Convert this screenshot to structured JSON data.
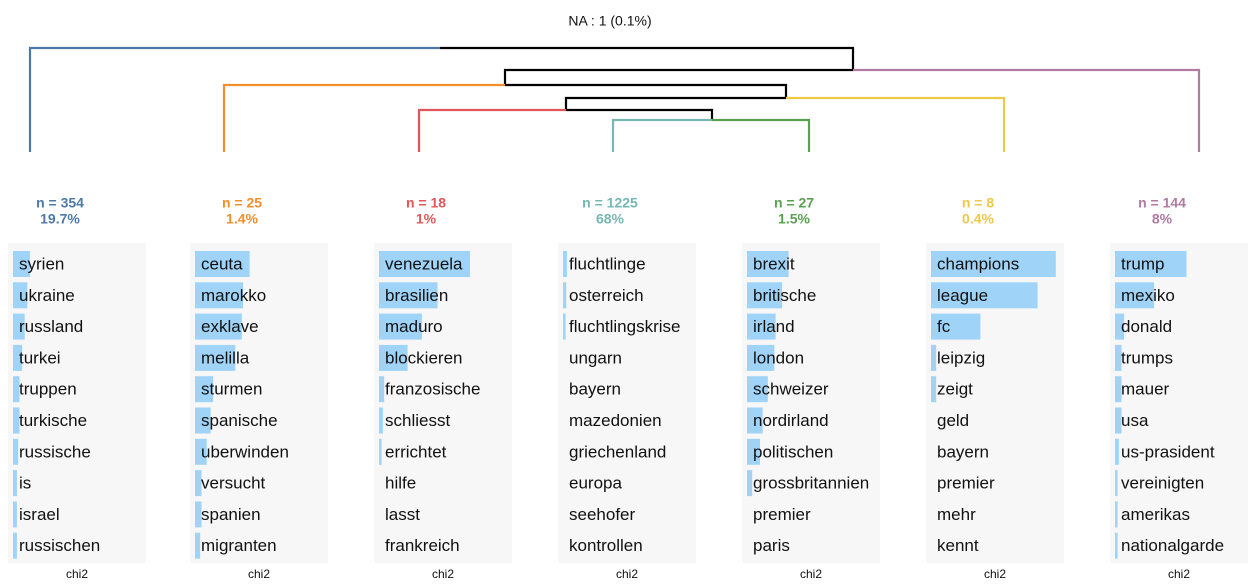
{
  "title": "NA : 1 (0.1%)",
  "clusters": [
    {
      "n": "n = 354",
      "pct": "19.7%",
      "color": "#4e79a7",
      "axis_label": "chi2",
      "xlim": [
        0,
        1
      ],
      "words": [
        "syrien",
        "ukraine",
        "russland",
        "turkei",
        "truppen",
        "turkische",
        "russische",
        "is",
        "israel",
        "russischen"
      ],
      "values": [
        0.13,
        0.11,
        0.09,
        0.07,
        0.05,
        0.05,
        0.04,
        0.03,
        0.03,
        0.03
      ]
    },
    {
      "n": "n = 25",
      "pct": "1.4%",
      "color": "#f28e2b",
      "axis_label": "chi2",
      "xlim": [
        0,
        1
      ],
      "words": [
        "ceuta",
        "marokko",
        "exklave",
        "melilla",
        "sturmen",
        "spanische",
        "uberwinden",
        "versucht",
        "spanien",
        "migranten"
      ],
      "values": [
        0.42,
        0.37,
        0.36,
        0.31,
        0.14,
        0.12,
        0.09,
        0.05,
        0.05,
        0.04
      ]
    },
    {
      "n": "n = 18",
      "pct": "1%",
      "color": "#e15759",
      "axis_label": "chi2",
      "xlim": [
        0,
        1
      ],
      "words": [
        "venezuela",
        "brasilien",
        "maduro",
        "blockieren",
        "franzosische",
        "schliesst",
        "errichtet",
        "hilfe",
        "lasst",
        "frankreich"
      ],
      "values": [
        0.7,
        0.45,
        0.33,
        0.22,
        0.04,
        0.03,
        0.02,
        0,
        0,
        0
      ]
    },
    {
      "n": "n = 1225",
      "pct": "68%",
      "color": "#76b7b2",
      "axis_label": "chi2",
      "xlim": [
        0,
        1
      ],
      "words": [
        "fluchtlinge",
        "osterreich",
        "fluchtlingskrise",
        "ungarn",
        "bayern",
        "mazedonien",
        "griechenland",
        "europa",
        "seehofer",
        "kontrollen"
      ],
      "values": [
        0.03,
        0.025,
        0.02,
        0,
        0,
        0,
        0,
        0,
        0,
        0
      ]
    },
    {
      "n": "n = 27",
      "pct": "1.5%",
      "color": "#59a14f",
      "axis_label": "chi2",
      "xlim": [
        0,
        1
      ],
      "words": [
        "brexit",
        "britische",
        "irland",
        "london",
        "schweizer",
        "nordirland",
        "politischen",
        "grossbritannien",
        "premier",
        "paris"
      ],
      "values": [
        0.32,
        0.27,
        0.22,
        0.21,
        0.16,
        0.12,
        0.1,
        0.04,
        0,
        0
      ]
    },
    {
      "n": "n = 8",
      "pct": "0.4%",
      "color": "#edc948",
      "axis_label": "chi2",
      "xlim": [
        0,
        1
      ],
      "words": [
        "champions",
        "league",
        "fc",
        "leipzig",
        "zeigt",
        "geld",
        "bayern",
        "premier",
        "mehr",
        "kennt"
      ],
      "values": [
        0.96,
        0.82,
        0.38,
        0.04,
        0.04,
        0,
        0,
        0,
        0,
        0
      ]
    },
    {
      "n": "n = 144",
      "pct": "8%",
      "color": "#b07aa1",
      "axis_label": "chi2",
      "xlim": [
        0,
        1
      ],
      "words": [
        "trump",
        "mexiko",
        "donald",
        "trumps",
        "mauer",
        "usa",
        "us-prasident",
        "vereinigten",
        "amerikas",
        "nationalgarde"
      ],
      "values": [
        0.55,
        0.3,
        0.07,
        0.05,
        0.05,
        0.05,
        0.03,
        0.02,
        0.02,
        0.02
      ]
    }
  ]
}
